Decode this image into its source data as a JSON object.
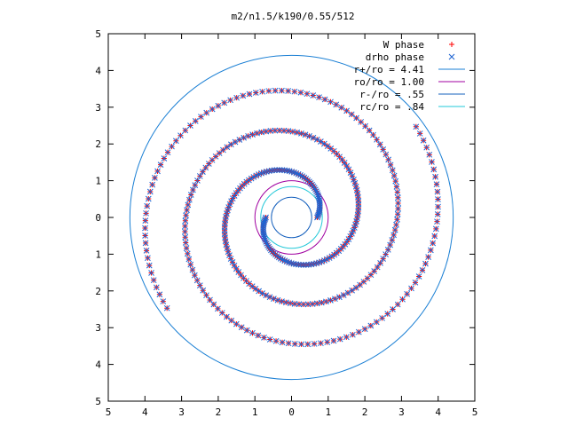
{
  "chart_data": {
    "type": "scatter",
    "title": "m2/n1.5/k190/0.55/512",
    "xlabel": "",
    "ylabel": "",
    "xlim": [
      -5,
      5
    ],
    "ylim": [
      -5,
      5
    ],
    "x_tick_labels": [
      "5",
      "4",
      "3",
      "2",
      "1",
      "0",
      "1",
      "2",
      "3",
      "4",
      "5"
    ],
    "y_tick_labels": [
      "5",
      "4",
      "3",
      "2",
      "1",
      "0",
      "1",
      "2",
      "3",
      "4",
      "5"
    ],
    "grid": false,
    "legend_position": "top-right",
    "colors": {
      "w_phase": "#ff0000",
      "drho_phase": "#1e64d2",
      "r_plus": "#1a7fd4",
      "r_o": "#a000a0",
      "r_minus": "#1560bd",
      "r_c": "#22c8d8"
    },
    "series": [
      {
        "name": "W phase",
        "marker": "plus",
        "spiral": {
          "arms": 2,
          "turns": 1.6,
          "r_start": 0.7,
          "r_end": 4.2,
          "phase_deg": 0,
          "points_per_arm": 200
        }
      },
      {
        "name": "drho phase",
        "marker": "cross",
        "spiral": {
          "arms": 2,
          "turns": 1.6,
          "r_start": 0.7,
          "r_end": 4.2,
          "phase_deg": 0,
          "points_per_arm": 200
        }
      }
    ],
    "circles": [
      {
        "name": "r+/ro = 4.41",
        "label": "r+/ro = 4.41",
        "radius": 4.41,
        "key": "r_plus"
      },
      {
        "name": "ro/ro = 1.00",
        "label": "ro/ro = 1.00",
        "radius": 1.0,
        "key": "r_o"
      },
      {
        "name": "r-/ro = .55",
        "label": "r-/ro = .55",
        "radius": 0.55,
        "key": "r_minus"
      },
      {
        "name": "rc/ro = .84",
        "label": "rc/ro = .84",
        "radius": 0.84,
        "key": "r_c"
      }
    ]
  }
}
